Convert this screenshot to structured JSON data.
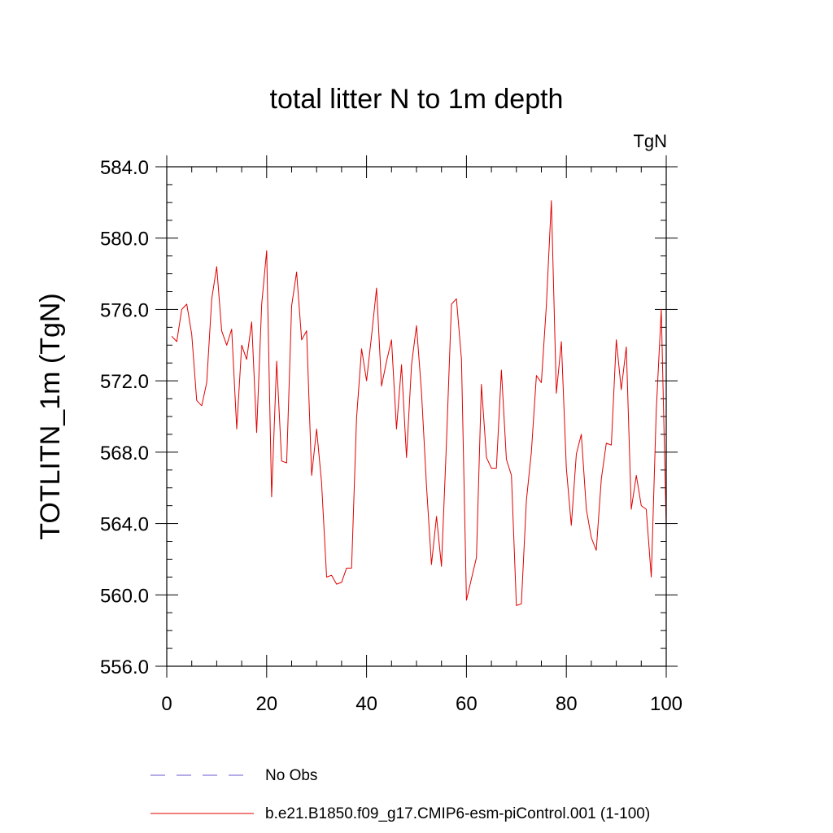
{
  "chart_data": {
    "type": "line",
    "title": "total litter N to 1m depth",
    "units_label": "TgN",
    "ylabel": "TOTLITN_1m  (TgN)",
    "xlabel": "",
    "xlim": [
      0,
      100
    ],
    "ylim": [
      556,
      584
    ],
    "x_ticks": [
      0,
      20,
      40,
      60,
      80,
      100
    ],
    "x_tick_labels": [
      "0",
      "20",
      "40",
      "60",
      "80",
      "100"
    ],
    "y_ticks": [
      556,
      560,
      564,
      568,
      572,
      576,
      580,
      584
    ],
    "y_tick_labels": [
      "556.0",
      "560.0",
      "564.0",
      "568.0",
      "572.0",
      "576.0",
      "580.0",
      "584.0"
    ],
    "grid": false,
    "legend_position": "bottom",
    "legend": [
      {
        "label": "No Obs",
        "color": "#6a5acd",
        "dash": "dashed"
      },
      {
        "label": "b.e21.B1850.f09_g17.CMIP6-esm-piControl.001 (1-100)",
        "color": "#e00000",
        "dash": "solid"
      }
    ],
    "series": [
      {
        "name": "b.e21.B1850.f09_g17.CMIP6-esm-piControl.001 (1-100)",
        "color": "#e00000",
        "x": [
          1,
          2,
          3,
          4,
          5,
          6,
          7,
          8,
          9,
          10,
          11,
          12,
          13,
          14,
          15,
          16,
          17,
          18,
          19,
          20,
          21,
          22,
          23,
          24,
          25,
          26,
          27,
          28,
          29,
          30,
          31,
          32,
          33,
          34,
          35,
          36,
          37,
          38,
          39,
          40,
          41,
          42,
          43,
          44,
          45,
          46,
          47,
          48,
          49,
          50,
          51,
          52,
          53,
          54,
          55,
          56,
          57,
          58,
          59,
          60,
          61,
          62,
          63,
          64,
          65,
          66,
          67,
          68,
          69,
          70,
          71,
          72,
          73,
          74,
          75,
          76,
          77,
          78,
          79,
          80,
          81,
          82,
          83,
          84,
          85,
          86,
          87,
          88,
          89,
          90,
          91,
          92,
          93,
          94,
          95,
          96,
          97,
          98,
          99,
          100
        ],
        "y": [
          574.5,
          574.2,
          576.0,
          576.3,
          574.6,
          570.9,
          570.6,
          571.9,
          576.6,
          578.4,
          574.8,
          574.0,
          574.9,
          569.3,
          574.0,
          573.2,
          575.3,
          569.1,
          576.3,
          579.3,
          565.5,
          573.1,
          567.5,
          567.4,
          576.2,
          578.1,
          574.3,
          574.8,
          566.7,
          569.3,
          566.3,
          561.0,
          561.1,
          560.6,
          560.7,
          561.5,
          561.5,
          569.9,
          573.8,
          572.0,
          574.5,
          577.2,
          571.7,
          573.1,
          574.3,
          569.3,
          572.9,
          567.7,
          572.9,
          575.1,
          571.4,
          566.1,
          561.7,
          564.4,
          561.6,
          568.5,
          576.3,
          576.6,
          573.2,
          559.7,
          560.9,
          562.1,
          571.8,
          567.7,
          567.1,
          567.1,
          572.6,
          567.6,
          566.7,
          559.4,
          559.5,
          565.3,
          568.0,
          572.3,
          571.9,
          576.2,
          582.1,
          571.3,
          574.2,
          567.1,
          563.9,
          567.9,
          569.0,
          564.8,
          563.2,
          562.5,
          566.5,
          568.5,
          568.4,
          574.3,
          571.5,
          573.9,
          564.8,
          566.7,
          565.0,
          564.8,
          561.0,
          570.3,
          576.0,
          563.8
        ]
      }
    ]
  }
}
